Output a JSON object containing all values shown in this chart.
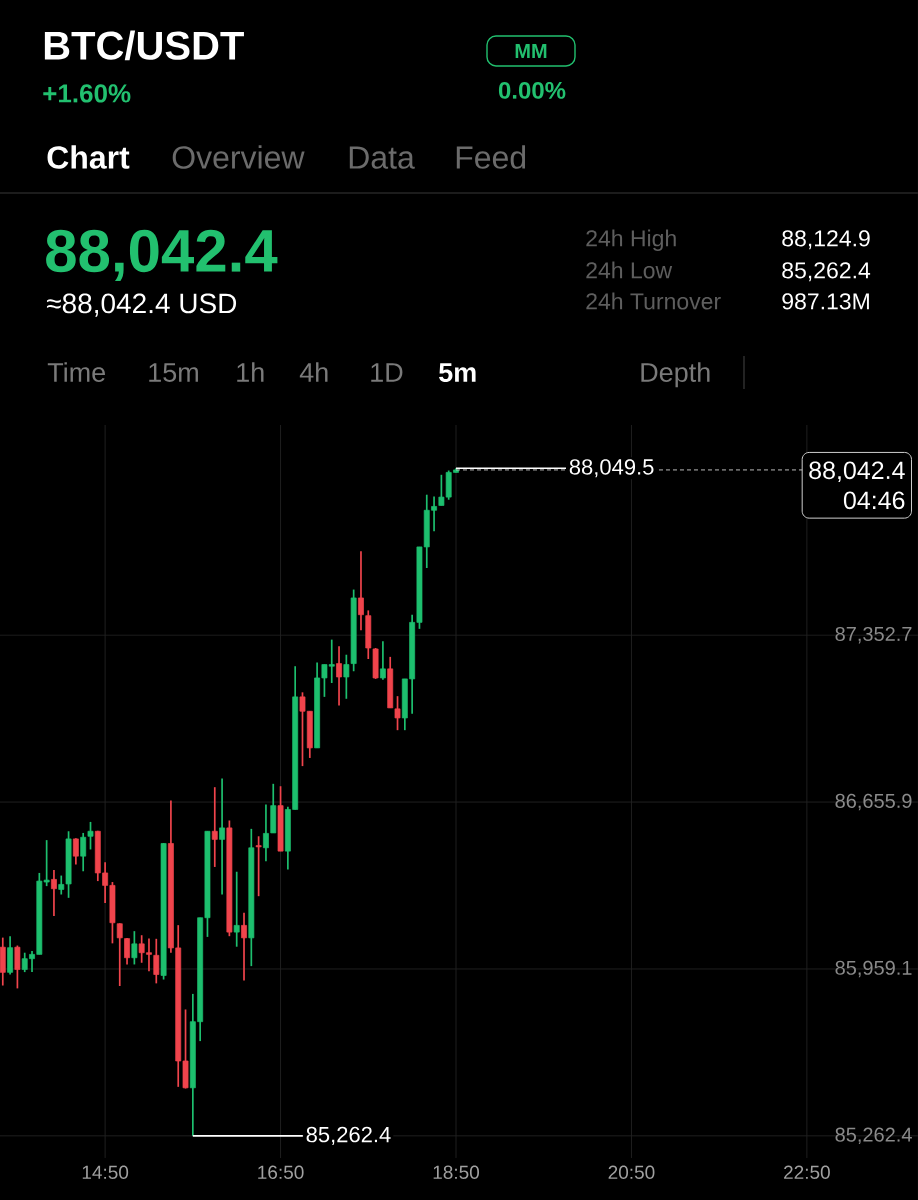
{
  "chart_data": {
    "type": "candlestick",
    "title": "BTC/USDT",
    "x": [
      13.6667,
      13.75,
      13.8333,
      13.9167,
      14,
      14.0833,
      14.1667,
      14.25,
      14.3333,
      14.4167,
      14.5,
      14.5833,
      14.6667,
      14.75,
      14.8333,
      14.9167,
      15,
      15.0833,
      15.1667,
      15.25,
      15.3333,
      15.4167,
      15.5,
      15.5833,
      15.6667,
      15.75,
      15.8333,
      15.9167,
      16,
      16.0833,
      16.1667,
      16.25,
      16.3333,
      16.4167,
      16.5,
      16.5833,
      16.6667,
      16.75,
      16.8333,
      16.9167,
      17,
      17.0833,
      17.1667,
      17.25,
      17.3333,
      17.4167,
      17.5,
      17.5833,
      17.6667,
      17.75,
      17.8333,
      17.9167,
      18,
      18.0833,
      18.1667,
      18.25,
      18.3333,
      18.4167,
      18.5,
      18.5833,
      18.6667,
      18.75,
      18.8333
    ],
    "ohlc": [
      [
        86050,
        86090,
        85890,
        85945
      ],
      [
        85945,
        86096,
        85936,
        86048
      ],
      [
        86050,
        86057,
        85878,
        85957
      ],
      [
        85957,
        86027,
        85946,
        86002
      ],
      [
        86002,
        86034,
        85946,
        86020
      ],
      [
        86020,
        86360,
        86020,
        86326
      ],
      [
        86322,
        86497,
        86305,
        86330
      ],
      [
        86333,
        86372,
        86180,
        86294
      ],
      [
        86291,
        86349,
        86270,
        86312
      ],
      [
        86314,
        86534,
        86256,
        86502
      ],
      [
        86502,
        86505,
        86395,
        86430
      ],
      [
        86430,
        86527,
        86367,
        86509
      ],
      [
        86513,
        86573,
        86458,
        86534
      ],
      [
        86534,
        86536,
        86326,
        86360
      ],
      [
        86360,
        86405,
        86235,
        86308
      ],
      [
        86308,
        86322,
        86066,
        86152
      ],
      [
        86148,
        86150,
        85888,
        86089
      ],
      [
        86086,
        86088,
        85978,
        86006
      ],
      [
        86006,
        86117,
        85978,
        86064
      ],
      [
        86064,
        86100,
        85985,
        86027
      ],
      [
        86027,
        86086,
        85950,
        86020
      ],
      [
        86016,
        86085,
        85899,
        85936
      ],
      [
        85932,
        86485,
        85915,
        86483
      ],
      [
        86483,
        86662,
        86027,
        86047
      ],
      [
        86047,
        86142,
        85467,
        85575
      ],
      [
        85575,
        85790,
        85460,
        85463
      ],
      [
        85463,
        85855,
        85262.4,
        85739
      ],
      [
        85739,
        86173,
        85658,
        86173
      ],
      [
        86173,
        86534,
        86093,
        86534
      ],
      [
        86534,
        86718,
        86385,
        86500
      ],
      [
        86500,
        86754,
        86270,
        86548
      ],
      [
        86548,
        86579,
        86096,
        86113
      ],
      [
        86113,
        86365,
        86052,
        86141
      ],
      [
        86141,
        86194,
        85911,
        86089
      ],
      [
        86089,
        86544,
        85971,
        86465
      ],
      [
        86474,
        86513,
        86263,
        86469
      ],
      [
        86465,
        86646,
        86409,
        86525
      ],
      [
        86527,
        86732,
        86527,
        86641
      ],
      [
        86641,
        86722,
        86451,
        86451
      ],
      [
        86451,
        86636,
        86374,
        86625
      ],
      [
        86625,
        87223,
        86625,
        87095
      ],
      [
        87095,
        87114,
        86806,
        87035
      ],
      [
        87035,
        87035,
        86840,
        86882
      ],
      [
        86882,
        87239,
        86882,
        87174
      ],
      [
        87174,
        87230,
        87095,
        87230
      ],
      [
        87223,
        87334,
        87153,
        87230
      ],
      [
        87234,
        87306,
        87059,
        87178
      ],
      [
        87178,
        87271,
        87087,
        87230
      ],
      [
        87234,
        87543,
        87202,
        87508
      ],
      [
        87508,
        87703,
        87373,
        87438
      ],
      [
        87434,
        87456,
        87253,
        87299
      ],
      [
        87295,
        87299,
        87170,
        87174
      ],
      [
        87174,
        87327,
        87167,
        87212
      ],
      [
        87212,
        87262,
        87049,
        87049
      ],
      [
        87045,
        87098,
        86956,
        87007
      ],
      [
        87007,
        87170,
        86956,
        87170
      ],
      [
        87170,
        87438,
        87025,
        87406
      ],
      [
        87406,
        87721,
        87379,
        87721
      ],
      [
        87721,
        87939,
        87633,
        87874
      ],
      [
        87874,
        87932,
        87786,
        87890
      ],
      [
        87894,
        88022,
        87894,
        87929
      ],
      [
        87929,
        88040,
        87918,
        88032
      ],
      [
        88032,
        88049.5,
        88032,
        88042.4
      ]
    ],
    "colors": [
      "#f0444c",
      "#1dbf6e",
      "#f0444c",
      "#1dbf6e",
      "#1dbf6e",
      "#1dbf6e",
      "#1dbf6e",
      "#f0444c",
      "#1dbf6e",
      "#1dbf6e",
      "#f0444c",
      "#1dbf6e",
      "#1dbf6e",
      "#f0444c",
      "#f0444c",
      "#f0444c",
      "#f0444c",
      "#f0444c",
      "#1dbf6e",
      "#f0444c",
      "#f0444c",
      "#f0444c",
      "#1dbf6e",
      "#f0444c",
      "#f0444c",
      "#f0444c",
      "#1dbf6e",
      "#1dbf6e",
      "#1dbf6e",
      "#f0444c",
      "#1dbf6e",
      "#f0444c",
      "#1dbf6e",
      "#f0444c",
      "#1dbf6e",
      "#f0444c",
      "#1dbf6e",
      "#1dbf6e",
      "#f0444c",
      "#1dbf6e",
      "#1dbf6e",
      "#f0444c",
      "#f0444c",
      "#1dbf6e",
      "#1dbf6e",
      "#1dbf6e",
      "#f0444c",
      "#1dbf6e",
      "#1dbf6e",
      "#f0444c",
      "#f0444c",
      "#f0444c",
      "#1dbf6e",
      "#f0444c",
      "#f0444c",
      "#1dbf6e",
      "#1dbf6e",
      "#1dbf6e",
      "#1dbf6e",
      "#1dbf6e",
      "#1dbf6e",
      "#1dbf6e",
      "#1dbf6e"
    ],
    "xlim": [
      13.635,
      24.1
    ],
    "ylim": [
      85170,
      88230
    ],
    "xticks": [
      {
        "value": 14.8333,
        "label": "14:50"
      },
      {
        "value": 16.8333,
        "label": "16:50"
      },
      {
        "value": 18.8333,
        "label": "18:50"
      },
      {
        "value": 20.8333,
        "label": "20:50"
      },
      {
        "value": 22.8333,
        "label": "22:50"
      }
    ],
    "yticks": [
      {
        "value": 85262.4,
        "label": "85,262.4"
      },
      {
        "value": 85959.1,
        "label": "85,959.1"
      },
      {
        "value": 86655.9,
        "label": "86,655.9"
      },
      {
        "value": 87352.7,
        "label": "87,352.7"
      }
    ],
    "grid": true,
    "ref_lines": [
      {
        "axis": "y",
        "value": 88042.4,
        "label": "88,042.4",
        "color": "#d0d0d0",
        "line_style": "dashed"
      }
    ],
    "annotations": [
      "+1.60%",
      "MM",
      "0.00%",
      "Chart",
      "Overview",
      "Data",
      "Feed",
      "88,042.4",
      "≈88,042.4 USD",
      "24h High",
      "88,124.9",
      "24h Low",
      "85,262.4",
      "24h Turnover",
      "987.13M",
      "Time",
      "15m",
      "1h",
      "4h",
      "1D",
      "5m",
      "Depth",
      "04:46",
      {
        "text": "88,049.5",
        "x": 18.8333,
        "y": 88049.5
      },
      {
        "text": "85,262.4",
        "x": 15.8333,
        "y": 85262.4
      }
    ]
  }
}
